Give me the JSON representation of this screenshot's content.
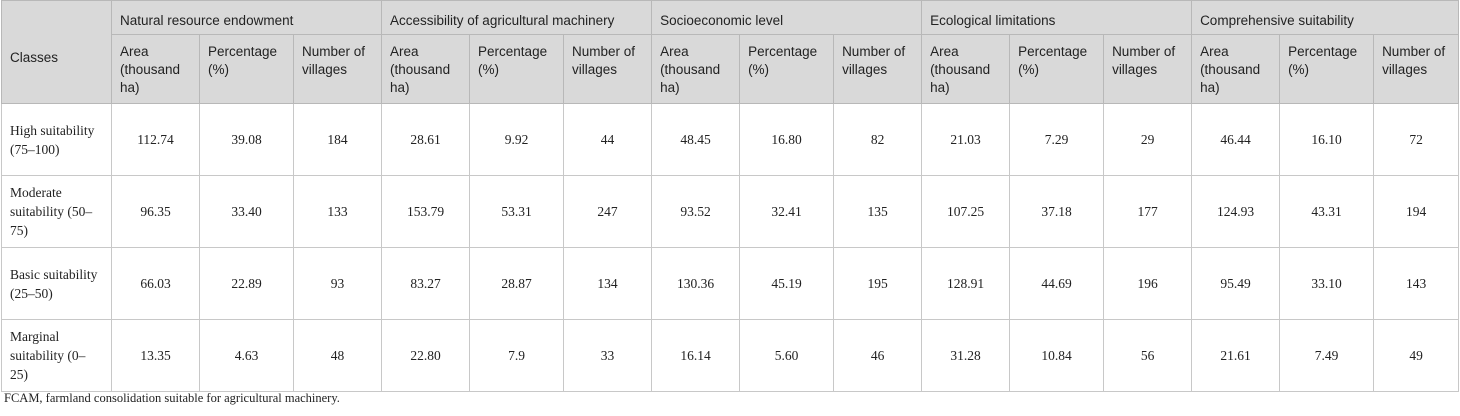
{
  "table": {
    "row_header": "Classes",
    "groups": [
      "Natural resource endowment",
      "Accessibility of agricultural machinery",
      "Socioeconomic level",
      "Ecological limitations",
      "Comprehensive suitability"
    ],
    "sub_headers": [
      "Area (thousand ha)",
      "Percentage (%)",
      "Number of villages"
    ],
    "rows": [
      {
        "class": "High suitability (75–100)",
        "values": [
          "112.74",
          "39.08",
          "184",
          "28.61",
          "9.92",
          "44",
          "48.45",
          "16.80",
          "82",
          "21.03",
          "7.29",
          "29",
          "46.44",
          "16.10",
          "72"
        ]
      },
      {
        "class": "Moderate suitability (50–75)",
        "values": [
          "96.35",
          "33.40",
          "133",
          "153.79",
          "53.31",
          "247",
          "93.52",
          "32.41",
          "135",
          "107.25",
          "37.18",
          "177",
          "124.93",
          "43.31",
          "194"
        ]
      },
      {
        "class": "Basic suitability (25–50)",
        "values": [
          "66.03",
          "22.89",
          "93",
          "83.27",
          "28.87",
          "134",
          "130.36",
          "45.19",
          "195",
          "128.91",
          "44.69",
          "196",
          "95.49",
          "33.10",
          "143"
        ]
      },
      {
        "class": "Marginal suitability (0–25)",
        "values": [
          "13.35",
          "4.63",
          "48",
          "22.80",
          "7.9",
          "33",
          "16.14",
          "5.60",
          "46",
          "31.28",
          "10.84",
          "56",
          "21.61",
          "7.49",
          "49"
        ]
      }
    ]
  },
  "footnote": "FCAM, farmland consolidation suitable for agricultural machinery."
}
